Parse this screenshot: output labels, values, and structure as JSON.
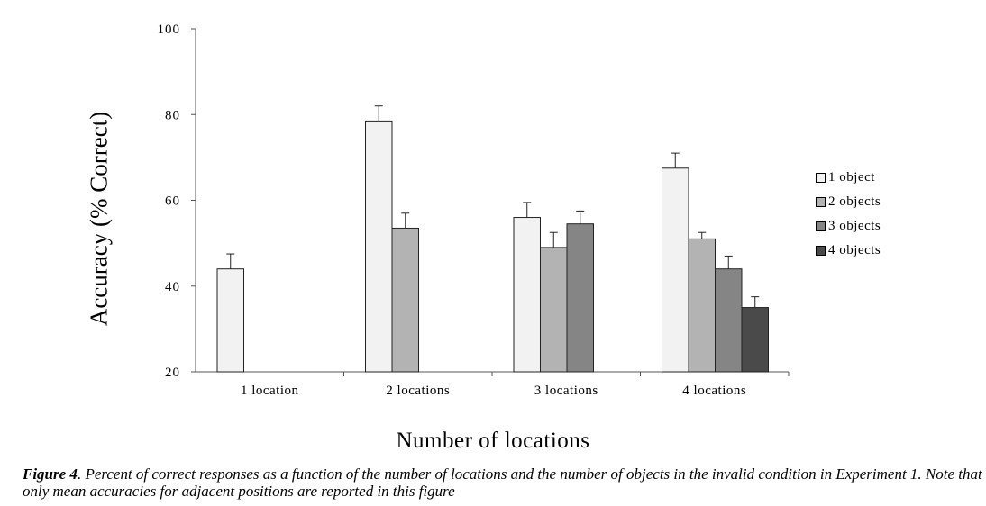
{
  "chart_data": {
    "type": "bar",
    "categories": [
      "1 location",
      "2 locations",
      "3 locations",
      "4 locations"
    ],
    "series": [
      {
        "name": "1 object",
        "color": "#f2f2f2",
        "values": [
          44,
          78.5,
          56,
          67.5
        ],
        "errors": [
          3.5,
          3.5,
          3.5,
          3.5
        ]
      },
      {
        "name": "2 objects",
        "color": "#b3b3b3",
        "values": [
          null,
          53.5,
          49,
          51
        ],
        "errors": [
          null,
          3.5,
          3.5,
          1.5
        ]
      },
      {
        "name": "3 objects",
        "color": "#858585",
        "values": [
          null,
          null,
          54.5,
          44
        ],
        "errors": [
          null,
          null,
          3,
          3
        ]
      },
      {
        "name": "4 objects",
        "color": "#4a4a4a",
        "values": [
          null,
          null,
          null,
          35
        ],
        "errors": [
          null,
          null,
          null,
          2.5
        ]
      }
    ],
    "ylim": [
      20,
      100
    ],
    "yticks": [
      "20",
      "40",
      "60",
      "80",
      "100"
    ],
    "xlabel": "Number of locations",
    "ylabel": "Accuracy (% Correct)",
    "grid": false,
    "legend_position": "right"
  },
  "caption": {
    "figure_label": "Figure 4",
    "text": ". Percent of correct responses as a function of the number of locations and the number of objects in the invalid condition in Experiment 1. Note that only mean accuracies for adjacent positions are reported in this figure"
  }
}
